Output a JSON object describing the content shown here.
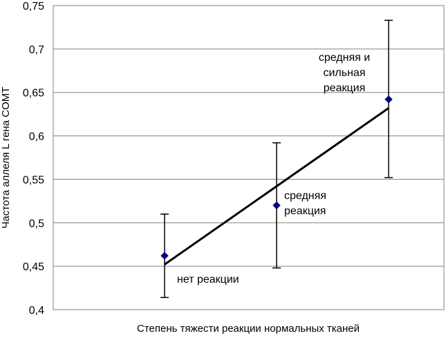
{
  "chart_data": {
    "type": "scatter",
    "title": "",
    "xlabel": "Степень тяжести реакции нормальных тканей",
    "ylabel": "Частота аллеля L гена COMT",
    "ylim": [
      0.4,
      0.75
    ],
    "yticks": [
      "0,4",
      "0,45",
      "0,5",
      "0,55",
      "0,6",
      "0,65",
      "0,7",
      "0,75"
    ],
    "ytick_values": [
      0.4,
      0.45,
      0.5,
      0.55,
      0.6,
      0.65,
      0.7,
      0.75
    ],
    "grid": true,
    "marker_color": "#000080",
    "points": [
      {
        "x": 1,
        "y": 0.462,
        "err_low": 0.414,
        "err_high": 0.51,
        "label": [
          "нет реакции"
        ]
      },
      {
        "x": 2,
        "y": 0.52,
        "err_low": 0.448,
        "err_high": 0.592,
        "label": [
          "средняя",
          "реакция"
        ]
      },
      {
        "x": 3,
        "y": 0.642,
        "err_low": 0.552,
        "err_high": 0.733,
        "label": [
          "средняя и",
          "сильная",
          "реакция"
        ]
      }
    ],
    "trendline": {
      "x_start": 1,
      "y_start": 0.452,
      "x_end": 3,
      "y_end": 0.632
    }
  }
}
